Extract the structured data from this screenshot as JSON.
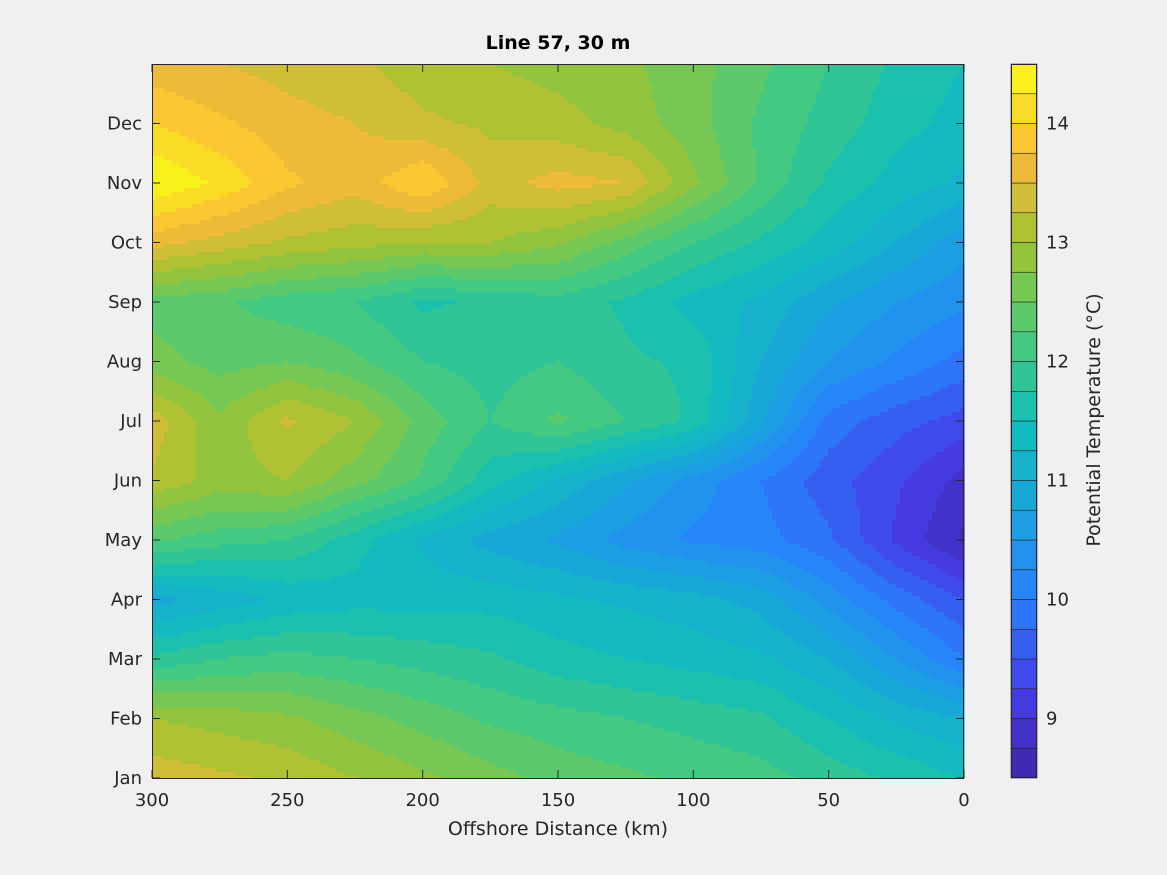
{
  "chart_data": {
    "type": "heatmap",
    "subtype": "filled-contour",
    "title": "Line 57, 30 m",
    "xlabel": "Offshore Distance (km)",
    "ylabel": "",
    "colorbar_label": "Potential Temperature (°C)",
    "x_reversed": true,
    "xlim": [
      0,
      300
    ],
    "ylim": [
      0,
      12
    ],
    "x_ticks": [
      300,
      250,
      200,
      150,
      100,
      50,
      0
    ],
    "y_ticks": [
      0,
      1,
      2,
      3,
      4,
      5,
      6,
      7,
      8,
      9,
      10,
      11
    ],
    "y_tick_labels": [
      "Jan",
      "Feb",
      "Mar",
      "Apr",
      "May",
      "Jun",
      "Jul",
      "Aug",
      "Sep",
      "Oct",
      "Nov",
      "Dec"
    ],
    "clim": [
      8.5,
      14.5
    ],
    "contour_step": 0.25,
    "colorbar_ticks": [
      9,
      10,
      11,
      12,
      13,
      14
    ],
    "colormap": "parula",
    "grid": false,
    "x_samples": [
      0,
      25,
      50,
      75,
      100,
      125,
      150,
      175,
      200,
      225,
      250,
      275,
      300
    ],
    "y_samples": [
      0,
      1,
      2,
      3,
      4,
      5,
      6,
      7,
      8,
      9,
      10,
      11,
      12
    ],
    "z": [
      [
        11.5,
        11.7,
        11.9,
        12.1,
        12.2,
        12.3,
        12.4,
        12.6,
        12.8,
        13.0,
        13.2,
        13.3,
        13.4
      ],
      [
        11.0,
        11.2,
        11.5,
        11.8,
        11.9,
        12.0,
        12.1,
        12.2,
        12.4,
        12.6,
        12.8,
        12.9,
        13.0
      ],
      [
        10.0,
        10.5,
        11.0,
        11.3,
        11.4,
        11.5,
        11.6,
        11.8,
        11.9,
        12.0,
        12.1,
        12.0,
        11.8
      ],
      [
        9.5,
        9.9,
        10.4,
        10.9,
        11.1,
        11.2,
        11.3,
        11.4,
        11.4,
        11.4,
        11.3,
        11.1,
        10.9
      ],
      [
        8.7,
        9.2,
        9.8,
        10.1,
        10.2,
        10.4,
        10.7,
        10.9,
        11.2,
        11.6,
        12.0,
        12.1,
        12.3
      ],
      [
        8.9,
        9.3,
        9.6,
        10.0,
        10.4,
        10.8,
        11.2,
        11.6,
        12.2,
        12.6,
        13.0,
        12.9,
        13.2
      ],
      [
        9.4,
        9.6,
        9.9,
        10.8,
        11.7,
        12.0,
        12.3,
        12.0,
        12.4,
        13.0,
        13.3,
        12.8,
        13.4
      ],
      [
        9.9,
        10.2,
        10.5,
        11.0,
        11.7,
        11.8,
        12.0,
        11.9,
        12.0,
        12.3,
        12.5,
        12.4,
        12.6
      ],
      [
        10.3,
        10.5,
        10.8,
        11.2,
        11.4,
        11.7,
        11.9,
        11.8,
        11.7,
        12.0,
        12.1,
        12.3,
        12.4
      ],
      [
        10.6,
        11.0,
        11.4,
        11.7,
        12.0,
        12.4,
        12.8,
        13.0,
        13.0,
        13.1,
        13.2,
        13.4,
        13.6
      ],
      [
        11.2,
        11.4,
        11.7,
        12.2,
        12.8,
        13.5,
        13.6,
        13.4,
        14.0,
        13.6,
        13.8,
        14.2,
        14.5
      ],
      [
        11.4,
        11.6,
        11.9,
        12.2,
        12.6,
        12.9,
        13.1,
        13.2,
        13.3,
        13.5,
        13.6,
        13.8,
        14.0
      ],
      [
        11.5,
        11.7,
        12.0,
        12.3,
        12.6,
        12.8,
        12.9,
        13.0,
        13.1,
        13.3,
        13.4,
        13.5,
        13.6
      ]
    ]
  }
}
